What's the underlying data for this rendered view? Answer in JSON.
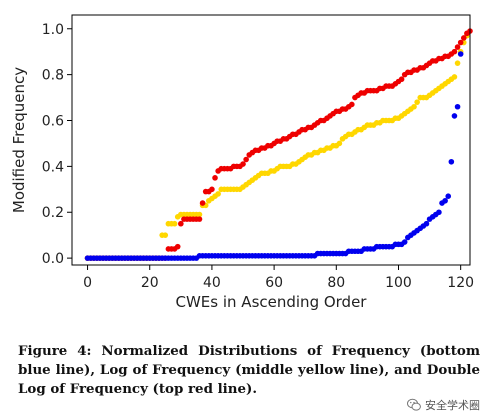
{
  "chart_data": {
    "type": "scatter",
    "xlabel": "CWEs in Ascending Order",
    "ylabel": "Modified Frequency",
    "xlim": [
      -5,
      123
    ],
    "ylim": [
      -0.03,
      1.06
    ],
    "x_ticks": [
      0,
      20,
      40,
      60,
      80,
      100,
      120
    ],
    "y_ticks": [
      0.0,
      0.2,
      0.4,
      0.6,
      0.8,
      1.0
    ],
    "grid": false,
    "series": [
      {
        "color": "#ffd700",
        "values": [
          0,
          0,
          0,
          0,
          0,
          0,
          0,
          0,
          0,
          0,
          0,
          0,
          0,
          0,
          0,
          0,
          0,
          0,
          0,
          0,
          0,
          0,
          0,
          0,
          0.1,
          0.1,
          0.15,
          0.15,
          0.15,
          0.18,
          0.19,
          0.19,
          0.19,
          0.19,
          0.19,
          0.19,
          0.19,
          0.23,
          0.23,
          0.25,
          0.26,
          0.27,
          0.28,
          0.3,
          0.3,
          0.3,
          0.3,
          0.3,
          0.3,
          0.3,
          0.31,
          0.32,
          0.33,
          0.34,
          0.35,
          0.36,
          0.37,
          0.37,
          0.37,
          0.38,
          0.38,
          0.39,
          0.4,
          0.4,
          0.4,
          0.4,
          0.41,
          0.41,
          0.42,
          0.43,
          0.44,
          0.45,
          0.45,
          0.46,
          0.46,
          0.47,
          0.47,
          0.48,
          0.48,
          0.49,
          0.49,
          0.5,
          0.52,
          0.53,
          0.54,
          0.54,
          0.55,
          0.56,
          0.56,
          0.57,
          0.58,
          0.58,
          0.58,
          0.59,
          0.59,
          0.6,
          0.6,
          0.6,
          0.6,
          0.61,
          0.61,
          0.62,
          0.63,
          0.64,
          0.65,
          0.66,
          0.68,
          0.7,
          0.7,
          0.7,
          0.71,
          0.72,
          0.73,
          0.74,
          0.75,
          0.76,
          0.77,
          0.78,
          0.79,
          0.85,
          0.9,
          0.94,
          0.97
        ]
      },
      {
        "color": "#ee0000",
        "values": [
          0,
          0,
          0,
          0,
          0,
          0,
          0,
          0,
          0,
          0,
          0,
          0,
          0,
          0,
          0,
          0,
          0,
          0,
          0,
          0,
          0,
          0,
          0,
          0,
          0,
          0,
          0.04,
          0.04,
          0.04,
          0.05,
          0.15,
          0.17,
          0.17,
          0.17,
          0.17,
          0.17,
          0.17,
          0.24,
          0.29,
          0.29,
          0.3,
          0.35,
          0.38,
          0.39,
          0.39,
          0.39,
          0.39,
          0.4,
          0.4,
          0.4,
          0.41,
          0.43,
          0.45,
          0.46,
          0.47,
          0.47,
          0.48,
          0.48,
          0.49,
          0.49,
          0.5,
          0.51,
          0.51,
          0.52,
          0.52,
          0.53,
          0.54,
          0.54,
          0.55,
          0.56,
          0.56,
          0.57,
          0.57,
          0.58,
          0.59,
          0.6,
          0.6,
          0.61,
          0.62,
          0.63,
          0.64,
          0.64,
          0.65,
          0.65,
          0.66,
          0.67,
          0.7,
          0.71,
          0.72,
          0.72,
          0.73,
          0.73,
          0.73,
          0.73,
          0.74,
          0.74,
          0.75,
          0.75,
          0.75,
          0.76,
          0.77,
          0.78,
          0.8,
          0.81,
          0.81,
          0.82,
          0.82,
          0.83,
          0.83,
          0.84,
          0.85,
          0.86,
          0.86,
          0.87,
          0.87,
          0.88,
          0.88,
          0.89,
          0.9,
          0.92,
          0.94,
          0.96,
          0.98,
          0.99
        ]
      },
      {
        "color": "#0000ee",
        "values": [
          0,
          0,
          0,
          0,
          0,
          0,
          0,
          0,
          0,
          0,
          0,
          0,
          0,
          0,
          0,
          0,
          0,
          0,
          0,
          0,
          0,
          0,
          0,
          0,
          0,
          0,
          0,
          0,
          0,
          0,
          0,
          0,
          0,
          0,
          0,
          0,
          0.01,
          0.01,
          0.01,
          0.01,
          0.01,
          0.01,
          0.01,
          0.01,
          0.01,
          0.01,
          0.01,
          0.01,
          0.01,
          0.01,
          0.01,
          0.01,
          0.01,
          0.01,
          0.01,
          0.01,
          0.01,
          0.01,
          0.01,
          0.01,
          0.01,
          0.01,
          0.01,
          0.01,
          0.01,
          0.01,
          0.01,
          0.01,
          0.01,
          0.01,
          0.01,
          0.01,
          0.01,
          0.01,
          0.02,
          0.02,
          0.02,
          0.02,
          0.02,
          0.02,
          0.02,
          0.02,
          0.02,
          0.02,
          0.03,
          0.03,
          0.03,
          0.03,
          0.03,
          0.04,
          0.04,
          0.04,
          0.04,
          0.05,
          0.05,
          0.05,
          0.05,
          0.05,
          0.05,
          0.06,
          0.06,
          0.06,
          0.07,
          0.09,
          0.1,
          0.11,
          0.12,
          0.13,
          0.14,
          0.15,
          0.17,
          0.18,
          0.19,
          0.2,
          0.24,
          0.25,
          0.27,
          0.42,
          0.62,
          0.66,
          0.89
        ]
      }
    ]
  },
  "caption": "Figure 4: Normalized Distributions of Frequency (bottom blue line), Log of Frequency (middle yellow line), and Double Log of Frequency (top red line).",
  "watermark": {
    "text": "安全学术圈",
    "icon": "wechat-icon"
  }
}
